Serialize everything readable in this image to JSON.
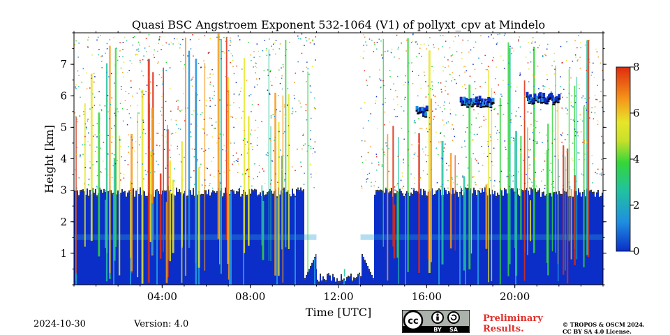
{
  "chart_data": {
    "type": "heatmap",
    "title": "Quasi BSC Angstroem Exponent 532-1064 (V1) of pollyxt_cpv at Mindelo",
    "xlabel": "Time [UTC]",
    "ylabel": "Height [km]",
    "xlim": [
      "00:00",
      "24:00"
    ],
    "ylim": [
      0,
      8
    ],
    "x_ticks": [
      "04:00",
      "08:00",
      "12:00",
      "16:00",
      "20:00"
    ],
    "y_ticks": [
      1,
      2,
      3,
      4,
      5,
      6,
      7
    ],
    "colorbar": {
      "vmin": 0,
      "vmax": 8,
      "ticks": [
        0,
        2,
        4,
        6,
        8
      ],
      "colormap": [
        "#0b2ec8",
        "#1f8fe0",
        "#22c2a0",
        "#34d63a",
        "#e6e62a",
        "#f59a1a",
        "#e02a10"
      ]
    },
    "layers": [
      {
        "label": "boundary layer",
        "height_top_km": 2.9,
        "value_range": [
          0.2,
          1.2
        ]
      },
      {
        "label": "elevated layer 15:30-16:00",
        "height_km": 5.6
      },
      {
        "label": "elevated layer 17:30-19:00",
        "height_km": 5.9
      },
      {
        "label": "elevated layer 20:30-22:00",
        "height_km": 6.0
      }
    ],
    "data_gaps_utc": [
      [
        "11:00",
        "13:00"
      ]
    ]
  },
  "footer": {
    "date": "2024-10-30",
    "version": "Version: 4.0",
    "preliminary_line1": "Preliminary",
    "preliminary_line2": "Results.",
    "copyright_line1": "© TROPOS & OSCM 2024.",
    "copyright_line2": "CC BY SA 4.0 License.",
    "license_badge": {
      "cc": "cc",
      "by": "BY",
      "sa": "SA"
    }
  }
}
